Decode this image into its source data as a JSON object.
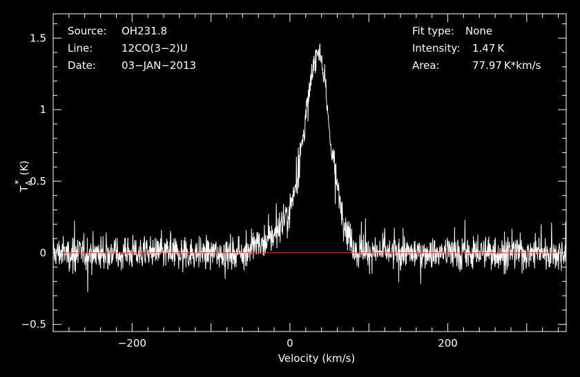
{
  "chart_data": {
    "type": "line",
    "xlabel": "Velocity (km/s)",
    "ylabel": {
      "main": "T",
      "sup": "*",
      "sub": "A",
      "unit": "(K)"
    },
    "xlim": [
      -300,
      350
    ],
    "ylim": [
      -0.55,
      1.67
    ],
    "xticks": [
      -200,
      0,
      200
    ],
    "xtick_labels": [
      "−200",
      "0",
      "200"
    ],
    "yticks": [
      -0.5,
      0,
      0.5,
      1,
      1.5
    ],
    "ytick_labels": [
      "−0.5",
      "0",
      "0.5",
      "1",
      "1.5"
    ],
    "grid": false,
    "baseline": {
      "y": 0,
      "color": "#ff2a2a"
    },
    "series": [
      {
        "color": "#ffffff",
        "profile_x": [
          -300,
          -70,
          -40,
          -20,
          0,
          10,
          20,
          30,
          36,
          42,
          50,
          60,
          70,
          80,
          95,
          120,
          350
        ],
        "profile_y": [
          0.0,
          0.0,
          0.05,
          0.12,
          0.3,
          0.55,
          0.95,
          1.3,
          1.45,
          1.3,
          0.85,
          0.45,
          0.2,
          0.05,
          0.0,
          0.0,
          0.0
        ],
        "noise_rms": 0.1,
        "peak_intensity": 1.47
      }
    ],
    "annotations": {
      "left": [
        {
          "key": "Source:",
          "value": "OH231.8"
        },
        {
          "key": "Line:",
          "value": "12CO(3−2)U"
        },
        {
          "key": "Date:",
          "value": "03−JAN−2013"
        }
      ],
      "right": [
        {
          "key": "Fit type:",
          "value": "None"
        },
        {
          "key": "Intensity:",
          "value": "1.47 K"
        },
        {
          "key": "Area:",
          "value": "77.97 K*km/s"
        }
      ]
    }
  }
}
